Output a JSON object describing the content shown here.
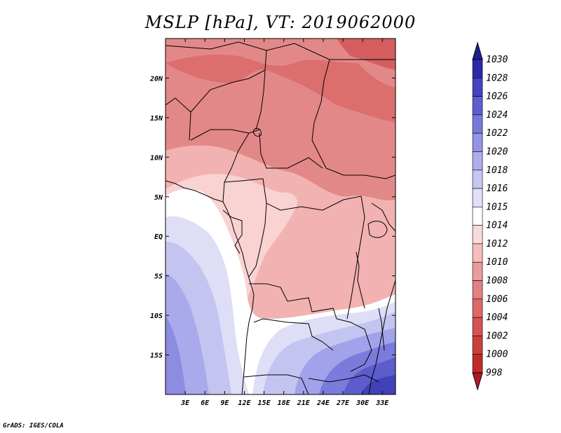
{
  "title": "MSLP [hPa], VT: 2019062000",
  "credit": "GrADS: IGES/COLA",
  "chart_data": {
    "type": "heatmap",
    "variable": "MSLP",
    "units": "hPa",
    "valid_time": "2019062000",
    "lon_range": [
      0,
      35
    ],
    "lat_range": [
      -20,
      25
    ],
    "x_ticks": [
      "3E",
      "6E",
      "9E",
      "12E",
      "15E",
      "18E",
      "21E",
      "24E",
      "27E",
      "30E",
      "33E"
    ],
    "x_tick_values": [
      3,
      6,
      9,
      12,
      15,
      18,
      21,
      24,
      27,
      30,
      33
    ],
    "y_ticks": [
      "20N",
      "15N",
      "10N",
      "5N",
      "EQ",
      "5S",
      "10S",
      "15S"
    ],
    "y_tick_values": [
      20,
      15,
      10,
      5,
      0,
      -5,
      -10,
      -15
    ],
    "colorbar_levels": [
      "998",
      "1000",
      "1002",
      "1004",
      "1006",
      "1008",
      "1010",
      "1012",
      "1014",
      "1015",
      "1016",
      "1018",
      "1020",
      "1022",
      "1024",
      "1026",
      "1028",
      "1030"
    ],
    "colorbar_colors": [
      "#b2182b",
      "#c12a2a",
      "#cc3f3f",
      "#d65353",
      "#de6868",
      "#e38080",
      "#ec9a9a",
      "#f6bdbd",
      "#fbdada",
      "#ffffff",
      "#e0e0f8",
      "#c6c6f2",
      "#adadee",
      "#9393e6",
      "#7878dc",
      "#5e5ed0",
      "#4444c0",
      "#2a2aa8",
      "#1f1f8f"
    ]
  }
}
